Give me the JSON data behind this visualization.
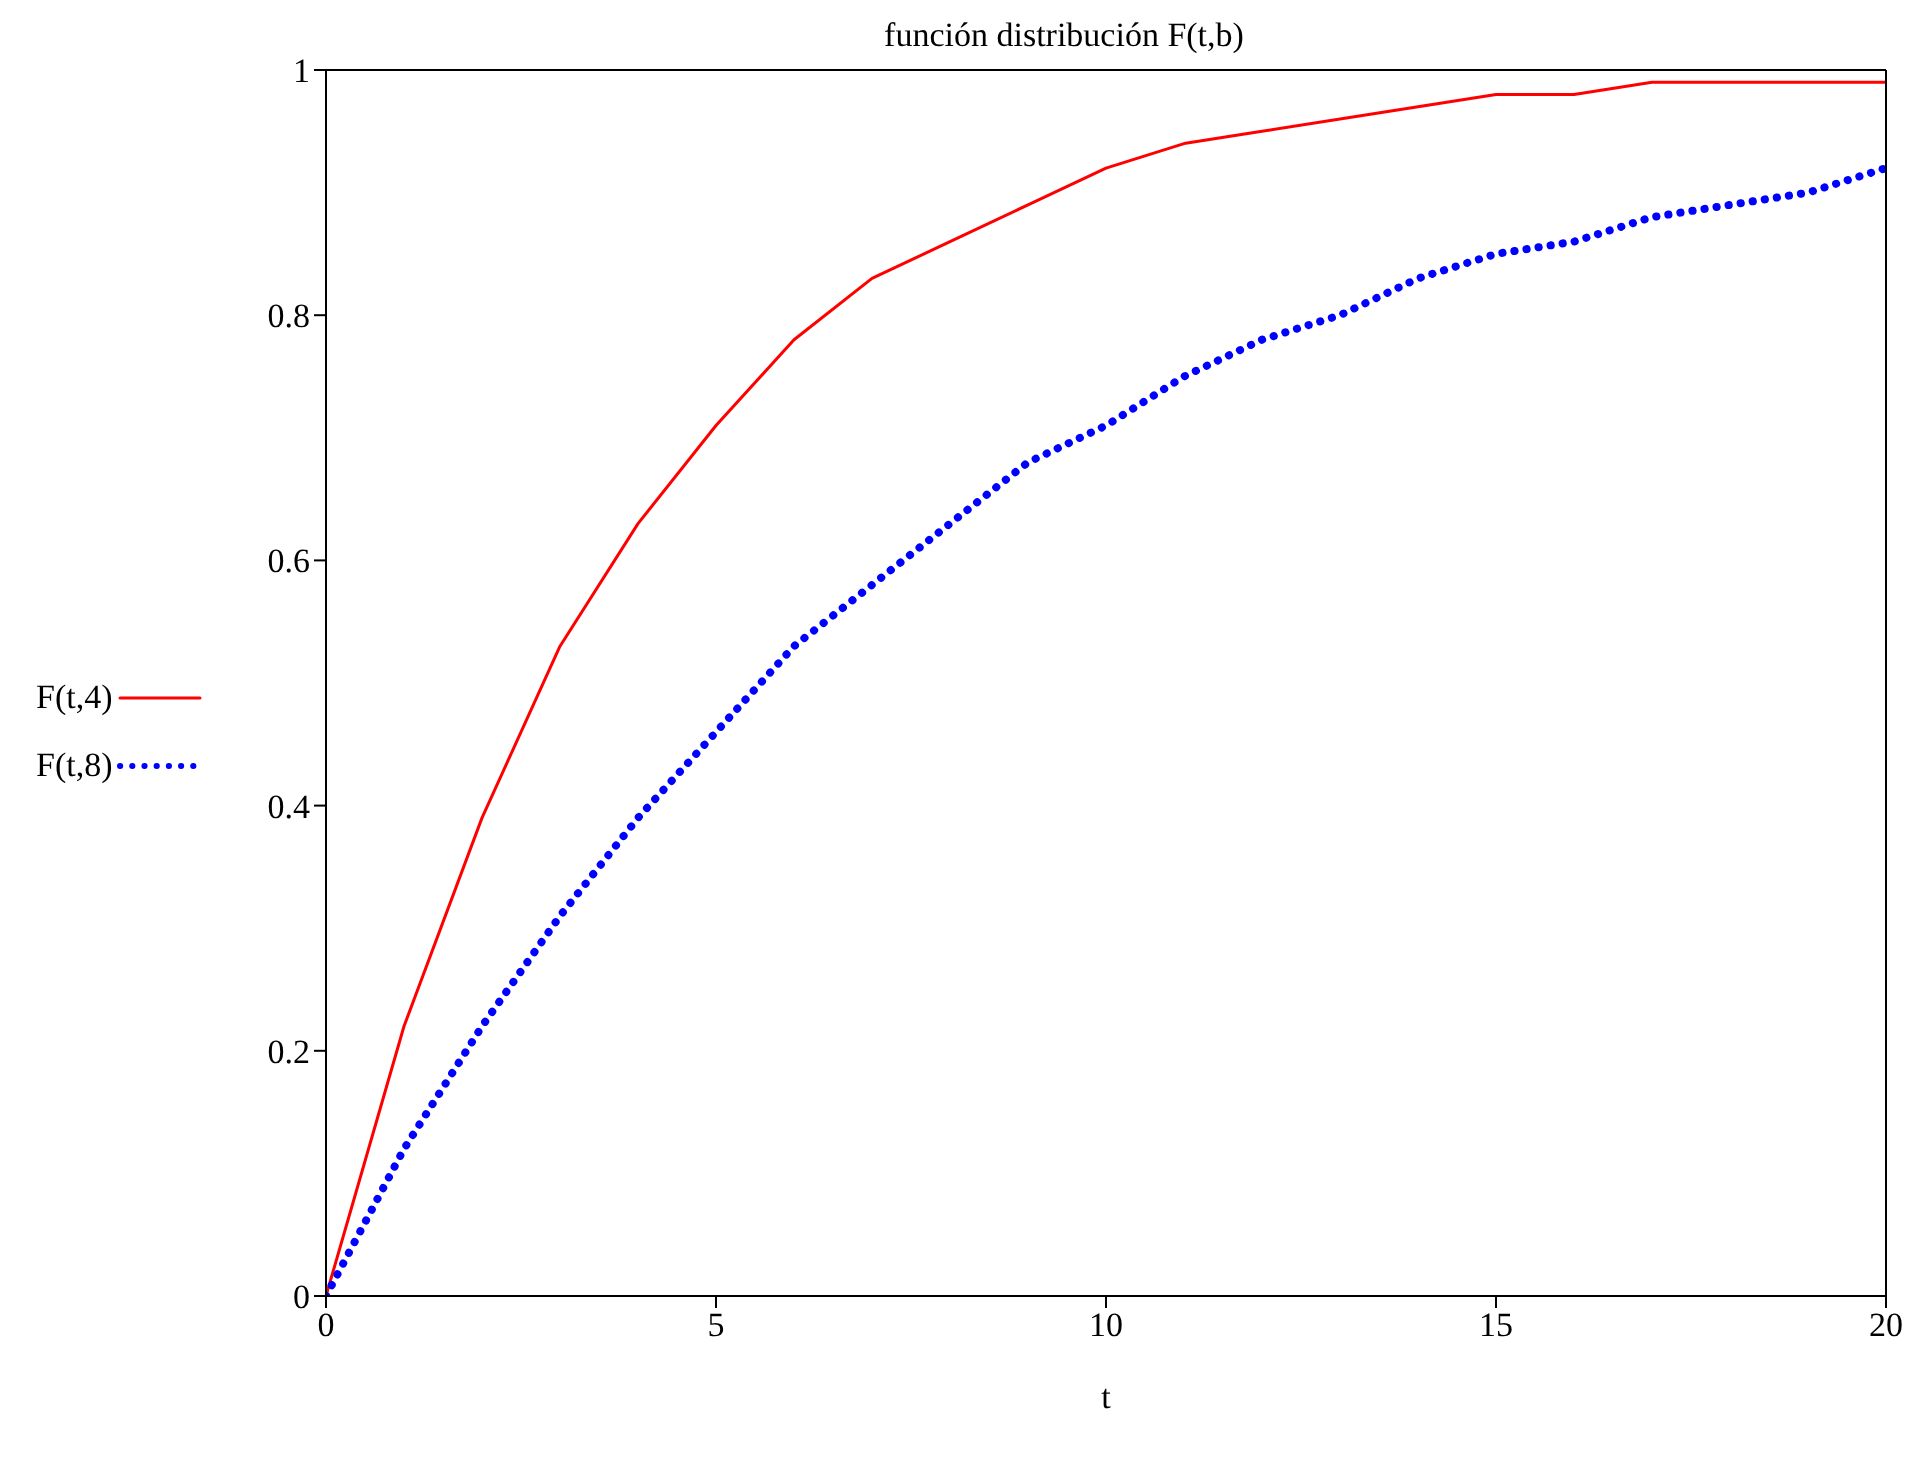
{
  "chart_data": {
    "type": "line",
    "title": "función distribución F(t,b)",
    "xlabel": "t",
    "x": [
      0,
      1,
      2,
      3,
      4,
      5,
      6,
      7,
      8,
      9,
      10,
      11,
      12,
      13,
      14,
      15,
      16,
      17,
      18,
      19,
      20
    ],
    "series": [
      {
        "name": "F(t,4)",
        "color": "#ff0000",
        "line_style": "solid",
        "values": [
          0,
          0.22,
          0.39,
          0.53,
          0.63,
          0.71,
          0.78,
          0.83,
          0.86,
          0.89,
          0.92,
          0.94,
          0.95,
          0.96,
          0.97,
          0.98,
          0.98,
          0.99,
          0.99,
          0.99,
          0.99
        ]
      },
      {
        "name": "F(t,8)",
        "color": "#0000ff",
        "line_style": "dotted",
        "values": [
          0,
          0.12,
          0.22,
          0.31,
          0.39,
          0.46,
          0.53,
          0.58,
          0.63,
          0.68,
          0.71,
          0.75,
          0.78,
          0.8,
          0.83,
          0.85,
          0.86,
          0.88,
          0.89,
          0.9,
          0.92
        ]
      }
    ],
    "xlim": [
      0,
      20
    ],
    "xticks": [
      0,
      5,
      10,
      15,
      20
    ],
    "ylim": [
      0,
      1
    ],
    "yticks": [
      0,
      0.2,
      0.4,
      0.6,
      0.8,
      1
    ],
    "grid": false,
    "legend": "left",
    "marker": "none"
  }
}
